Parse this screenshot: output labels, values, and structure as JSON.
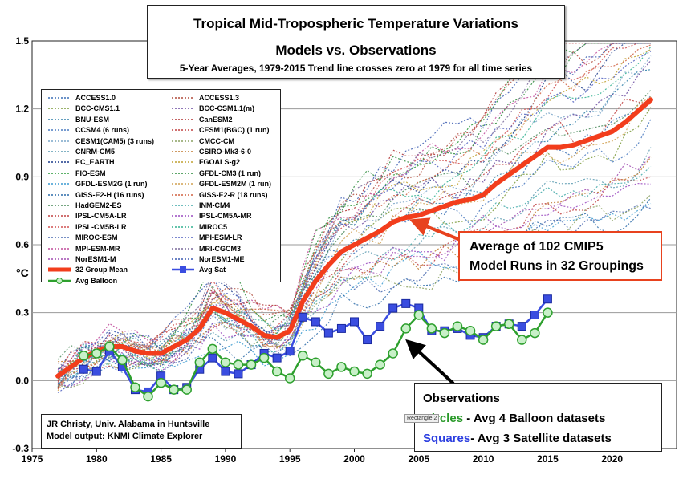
{
  "title": {
    "line1": "Tropical Mid-Tropospheric Temperature Variations",
    "line2": "Models vs. Observations",
    "line3": "5-Year Averages, 1979-2015 Trend line crosses zero at 1979 for all time series"
  },
  "ylabel": "°C",
  "credit": {
    "line1": "JR Christy, Univ. Alabama in Huntsville",
    "line2": "Model output: KNMI Climate Explorer"
  },
  "annotation_models": {
    "line1": "Average of 102 CMIP5",
    "line2": "Model Runs in 32 Groupings"
  },
  "observations_box": {
    "heading": "Observations",
    "circles_word": "Circles",
    "circles_rest": " - Avg 4 Balloon datasets",
    "squares_word": "Squares",
    "squares_rest": "- Avg 3 Satellite datasets",
    "tag": "Rectangle 2"
  },
  "legend": {
    "models_left": [
      "ACCESS1.0",
      "BCC-CMS1.1",
      "BNU-ESM",
      "CCSM4 (6 runs)",
      "CESM1(CAM5) (3 runs)",
      "CNRM-CM5",
      "EC_EARTH",
      "FIO-ESM",
      "GFDL-ESM2G (1 run)",
      "GISS-E2-H (16 runs)",
      "HadGEM2-ES",
      "IPSL-CM5A-LR",
      "IPSL-CM5B-LR",
      "MIROC-ESM",
      "MPI-ESM-MR",
      "NorESM1-M"
    ],
    "models_right": [
      "ACCESS1.3",
      "BCC-CSM1.1(m)",
      "CanESM2",
      "CESM1(BGC) (1 run)",
      "CMCC-CM",
      "CSIRO-Mk3-6-0",
      "FGOALS-g2",
      "GFDL-CM3 (1 run)",
      "GFDL-ESM2M (1 run)",
      "GISS-E2-R (18 runs)",
      "INM-CM4",
      "IPSL-CM5A-MR",
      "MIROC5",
      "MPI-ESM-LR",
      "MRI-CGCM3",
      "NorESM1-ME"
    ],
    "colors_left": [
      "#3a6fb5",
      "#7a9a3a",
      "#2f7fa8",
      "#4a7ac0",
      "#7aa5c8",
      "#5a9ab0",
      "#1a3a8a",
      "#2a9a3a",
      "#3a9ad0",
      "#2a6aa8",
      "#4a8a5a",
      "#c04040",
      "#d05050",
      "#4a6ab0",
      "#c04a9a",
      "#a04ab0"
    ],
    "colors_right": [
      "#b04a3a",
      "#6a4aa0",
      "#b03030",
      "#c04040",
      "#8aa060",
      "#c07a30",
      "#c0a030",
      "#2a8a3a",
      "#d0a050",
      "#d06040",
      "#40a8a8",
      "#9a4ac0",
      "#30b090",
      "#5060c0",
      "#7a6a9a",
      "#3a5ab0"
    ],
    "mean_label": "32 Group Mean",
    "sat_label": "Avg Sat",
    "balloon_label": "Avg Balloon"
  },
  "colors": {
    "mean": "#f23d1c",
    "satellite": "#3a4de0",
    "balloon": "#2ea02e",
    "arrow_red": "#e8421e",
    "arrow_black": "#000000"
  },
  "chart_data": {
    "type": "line",
    "title": "Tropical Mid-Tropospheric Temperature Variations",
    "xlim": [
      1975,
      2025
    ],
    "ylim": [
      -0.3,
      1.5
    ],
    "x_ticks": [
      1975,
      1980,
      1985,
      1990,
      1995,
      2000,
      2005,
      2010,
      2015,
      2020
    ],
    "y_ticks": [
      -0.3,
      0.0,
      0.3,
      0.6,
      0.9,
      1.2,
      1.5
    ],
    "y_tick_labels": [
      "-0.3",
      "0.0",
      "0.3",
      "0.6",
      "0.9",
      "1.2",
      "1.5"
    ],
    "ylabel": "°C",
    "grid": true,
    "legend_position": "top-left",
    "series": [
      {
        "name": "32 Group Mean",
        "style": "thick-line",
        "x": [
          1977,
          1978,
          1979,
          1980,
          1981,
          1982,
          1983,
          1984,
          1985,
          1986,
          1987,
          1988,
          1989,
          1990,
          1991,
          1992,
          1993,
          1994,
          1995,
          1996,
          1997,
          1998,
          1999,
          2000,
          2001,
          2002,
          2003,
          2004,
          2005,
          2006,
          2007,
          2008,
          2009,
          2010,
          2011,
          2012,
          2013,
          2014,
          2015,
          2016,
          2017,
          2018,
          2019,
          2020,
          2021,
          2022,
          2023
        ],
        "values": [
          0.02,
          0.06,
          0.1,
          0.13,
          0.15,
          0.15,
          0.13,
          0.12,
          0.12,
          0.15,
          0.18,
          0.23,
          0.32,
          0.3,
          0.27,
          0.24,
          0.2,
          0.19,
          0.22,
          0.35,
          0.44,
          0.51,
          0.57,
          0.6,
          0.63,
          0.66,
          0.7,
          0.72,
          0.73,
          0.75,
          0.77,
          0.79,
          0.8,
          0.82,
          0.87,
          0.91,
          0.95,
          0.99,
          1.03,
          1.03,
          1.04,
          1.06,
          1.08,
          1.1,
          1.14,
          1.19,
          1.24
        ]
      },
      {
        "name": "Avg Sat",
        "style": "line-squares",
        "x": [
          1979,
          1980,
          1981,
          1982,
          1983,
          1984,
          1985,
          1986,
          1987,
          1988,
          1989,
          1990,
          1991,
          1992,
          1993,
          1994,
          1995,
          1996,
          1997,
          1998,
          1999,
          2000,
          2001,
          2002,
          2003,
          2004,
          2005,
          2006,
          2007,
          2008,
          2009,
          2010,
          2011,
          2012,
          2013,
          2014,
          2015
        ],
        "values": [
          0.05,
          0.04,
          0.13,
          0.06,
          -0.04,
          -0.05,
          0.02,
          -0.04,
          -0.03,
          0.05,
          0.1,
          0.04,
          0.03,
          0.07,
          0.12,
          0.1,
          0.13,
          0.28,
          0.26,
          0.21,
          0.23,
          0.26,
          0.18,
          0.24,
          0.32,
          0.34,
          0.32,
          0.22,
          0.22,
          0.23,
          0.2,
          0.19,
          0.24,
          0.25,
          0.24,
          0.29,
          0.36
        ]
      },
      {
        "name": "Avg Balloon",
        "style": "line-circles",
        "x": [
          1979,
          1980,
          1981,
          1982,
          1983,
          1984,
          1985,
          1986,
          1987,
          1988,
          1989,
          1990,
          1991,
          1992,
          1993,
          1994,
          1995,
          1996,
          1997,
          1998,
          1999,
          2000,
          2001,
          2002,
          2003,
          2004,
          2005,
          2006,
          2007,
          2008,
          2009,
          2010,
          2011,
          2012,
          2013,
          2014,
          2015
        ],
        "values": [
          0.11,
          0.12,
          0.15,
          0.09,
          -0.03,
          -0.07,
          -0.01,
          -0.04,
          -0.04,
          0.08,
          0.14,
          0.08,
          0.07,
          0.07,
          0.1,
          0.04,
          0.01,
          0.11,
          0.08,
          0.03,
          0.06,
          0.04,
          0.03,
          0.07,
          0.12,
          0.23,
          0.29,
          0.23,
          0.21,
          0.24,
          0.22,
          0.18,
          0.24,
          0.25,
          0.18,
          0.21,
          0.3
        ]
      }
    ],
    "model_runs_note": "32 individual model group curves (dotted) spread around the mean"
  }
}
